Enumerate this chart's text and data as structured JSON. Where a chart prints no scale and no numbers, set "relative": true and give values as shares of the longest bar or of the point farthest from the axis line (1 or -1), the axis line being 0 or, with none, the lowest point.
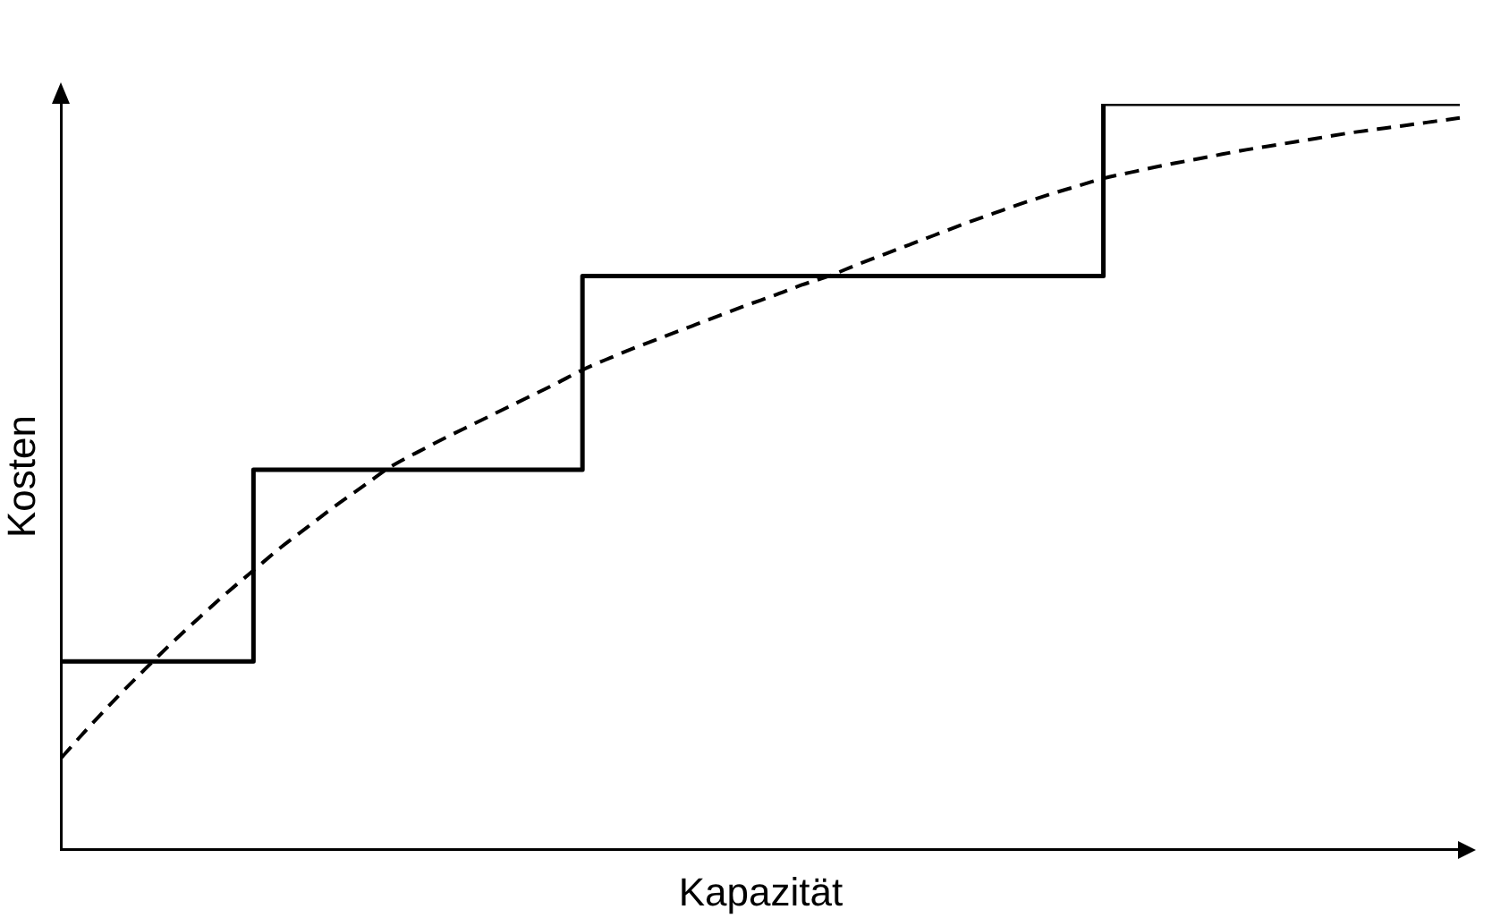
{
  "chart_data": {
    "type": "line",
    "xlabel": "Kapazität",
    "ylabel": "Kosten",
    "relative": true,
    "legend": false,
    "marker": "none",
    "categories": [
      null,
      null,
      null,
      null,
      null,
      null,
      null,
      null,
      null,
      null,
      null,
      null,
      null,
      null,
      null,
      null,
      null,
      null,
      null,
      null,
      null,
      null,
      null,
      null,
      null,
      null,
      null,
      null,
      null,
      null,
      null,
      null,
      null,
      null,
      null,
      null,
      null,
      null,
      null,
      null,
      null,
      null,
      null,
      null,
      null,
      null,
      null,
      null,
      null,
      null,
      null,
      null
    ],
    "series": [
      {
        "type": "step",
        "color": "#000000",
        "line_style": "solid",
        "values": [
          0.252,
          0.252,
          0.252,
          0.252,
          0.252,
          0.252,
          0.252,
          0.509,
          0.509,
          0.509,
          0.509,
          0.509,
          0.509,
          0.509,
          0.509,
          0.509,
          0.509,
          0.509,
          0.509,
          0.769,
          0.769,
          0.769,
          0.769,
          0.769,
          0.769,
          0.769,
          0.769,
          0.769,
          0.769,
          0.769,
          0.769,
          0.769,
          0.769,
          0.769,
          0.769,
          0.769,
          0.769,
          0.769,
          1,
          1,
          1,
          1,
          1,
          1,
          1,
          1,
          1,
          1,
          1,
          1,
          1,
          1
        ]
      },
      {
        "type": "line",
        "color": "#000000",
        "line_style": "dashed",
        "values": [
          0.123,
          0.164,
          0.203,
          0.24,
          0.276,
          0.31,
          0.343,
          0.374,
          0.405,
          0.433,
          0.461,
          0.487,
          0.513,
          0.533,
          0.552,
          0.57,
          0.588,
          0.606,
          0.624,
          0.643,
          0.659,
          0.674,
          0.688,
          0.702,
          0.716,
          0.73,
          0.743,
          0.757,
          0.769,
          0.784,
          0.798,
          0.812,
          0.826,
          0.84,
          0.853,
          0.866,
          0.878,
          0.889,
          0.9,
          0.908,
          0.916,
          0.923,
          0.93,
          0.937,
          0.943,
          0.949,
          0.955,
          0.961,
          0.966,
          0.971,
          0.976,
          0.981
        ]
      }
    ]
  }
}
